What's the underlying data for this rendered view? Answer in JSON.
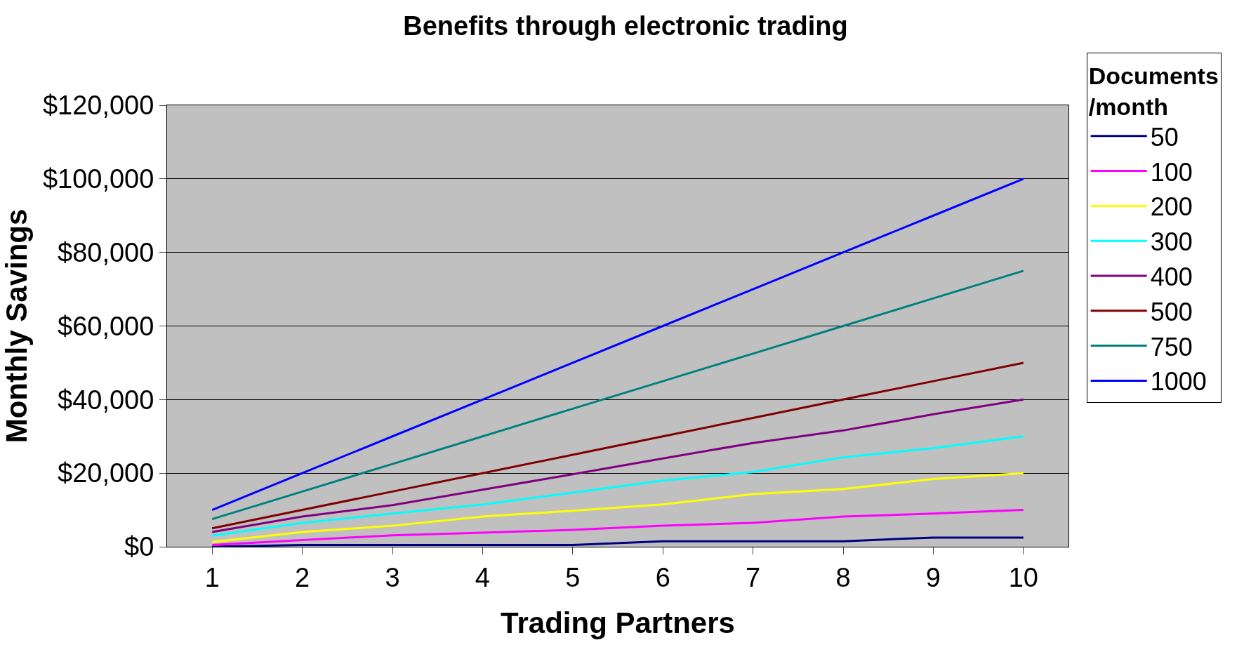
{
  "chart_data": {
    "type": "line",
    "title": "Benefits through electronic trading",
    "xlabel": "Trading Partners",
    "ylabel": "Monthly Savings",
    "legend_title": "Documents /month",
    "categories": [
      "1",
      "2",
      "3",
      "4",
      "5",
      "6",
      "7",
      "8",
      "9",
      "10"
    ],
    "series": [
      {
        "name": "50",
        "color": "#000080",
        "values": [
          0,
          500,
          500,
          500,
          500,
          1500,
          1500,
          1500,
          2500,
          2500
        ]
      },
      {
        "name": "100",
        "color": "#ff00ff",
        "values": [
          500,
          1800,
          3100,
          3800,
          4600,
          5700,
          6500,
          8200,
          9000,
          10000
        ]
      },
      {
        "name": "200",
        "color": "#ffff00",
        "values": [
          1300,
          4000,
          5700,
          8200,
          9800,
          11500,
          14300,
          15700,
          18400,
          20000
        ]
      },
      {
        "name": "300",
        "color": "#00ffff",
        "values": [
          3000,
          6500,
          9000,
          11500,
          14700,
          18000,
          20300,
          24300,
          26800,
          30000
        ]
      },
      {
        "name": "400",
        "color": "#800080",
        "values": [
          4000,
          8200,
          11300,
          15500,
          19700,
          24000,
          28200,
          31600,
          36000,
          40000
        ]
      },
      {
        "name": "500",
        "color": "#800000",
        "values": [
          5000,
          10000,
          15000,
          20000,
          25000,
          30000,
          35000,
          40000,
          45000,
          50000
        ]
      },
      {
        "name": "750",
        "color": "#008080",
        "values": [
          7500,
          15000,
          22500,
          30000,
          37500,
          45000,
          52500,
          60000,
          67500,
          75000
        ]
      },
      {
        "name": "1000",
        "color": "#0000ff",
        "values": [
          10000,
          20000,
          30000,
          40000,
          50000,
          60000,
          70000,
          80000,
          90000,
          100000
        ]
      }
    ],
    "ylim": [
      0,
      120000
    ],
    "yticks": [
      {
        "value": 0,
        "label": "$0"
      },
      {
        "value": 20000,
        "label": "$20,000"
      },
      {
        "value": 40000,
        "label": "$40,000"
      },
      {
        "value": 60000,
        "label": "$60,000"
      },
      {
        "value": 80000,
        "label": "$80,000"
      },
      {
        "value": 100000,
        "label": "$100,000"
      },
      {
        "value": 120000,
        "label": "$120,000"
      }
    ],
    "grid": "y",
    "legend": "right",
    "marker": "none",
    "line_style": "solid"
  }
}
